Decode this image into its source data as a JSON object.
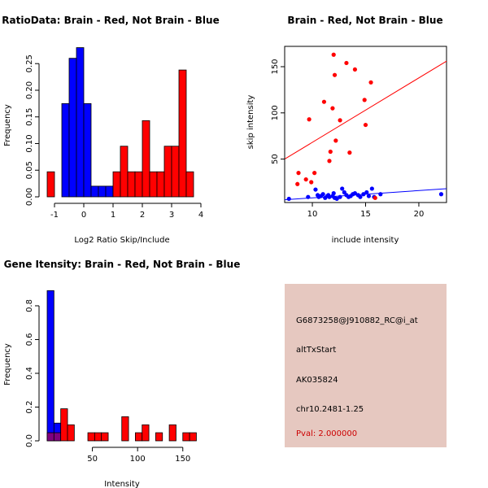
{
  "chart_data": [
    {
      "type": "bar",
      "title": "RatioData: Brain - Red, Not Brain - Blue",
      "xlabel": "Log2 Ratio Skip/Include",
      "ylabel": "Frequency",
      "xlim": [
        -1.25,
        4.0
      ],
      "ylim": [
        0,
        0.29
      ],
      "xticks": [
        "-1",
        "0",
        "1",
        "2",
        "3",
        "4"
      ],
      "xtick_values": [
        -1,
        0,
        1,
        2,
        3,
        4
      ],
      "yticks": [
        "0.00",
        "0.05",
        "0.10",
        "0.15",
        "0.20",
        "0.25"
      ],
      "ytick_values": [
        0,
        0.05,
        0.1,
        0.15,
        0.2,
        0.25
      ],
      "bin_width": 0.25,
      "series": [
        {
          "name": "Not Brain",
          "color": "#0000ff",
          "bins": [
            [
              -1.0,
              0.0
            ],
            [
              -0.75,
              0.175
            ],
            [
              -0.5,
              0.26
            ],
            [
              -0.25,
              0.28
            ],
            [
              0.0,
              0.175
            ],
            [
              0.25,
              0.02
            ],
            [
              0.5,
              0.02
            ],
            [
              0.75,
              0.02
            ]
          ]
        },
        {
          "name": "Brain",
          "color": "#ff0000",
          "bins": [
            [
              -1.25,
              0.047
            ],
            [
              1.0,
              0.047
            ],
            [
              1.25,
              0.095
            ],
            [
              1.5,
              0.047
            ],
            [
              1.75,
              0.047
            ],
            [
              2.0,
              0.143
            ],
            [
              2.25,
              0.047
            ],
            [
              2.5,
              0.047
            ],
            [
              2.75,
              0.095
            ],
            [
              3.0,
              0.095
            ],
            [
              3.25,
              0.238
            ],
            [
              3.5,
              0.047
            ]
          ]
        }
      ]
    },
    {
      "type": "scatter",
      "title": "Brain - Red, Not Brain - Blue",
      "xlabel": "include intensity",
      "ylabel": "skip intensity",
      "xlim": [
        7.4,
        22.6
      ],
      "ylim": [
        3,
        172
      ],
      "xticks": [
        "10",
        "15",
        "20"
      ],
      "xtick_values": [
        10,
        15,
        20
      ],
      "yticks": [
        "50",
        "100",
        "150"
      ],
      "ytick_values": [
        50,
        100,
        150
      ],
      "series": [
        {
          "name": "Brain",
          "color": "#ff0000",
          "fit_line": [
            [
              7.4,
              50
            ],
            [
              22.6,
              156
            ]
          ],
          "points": [
            [
              8.6,
              23
            ],
            [
              8.7,
              35
            ],
            [
              9.4,
              28
            ],
            [
              9.7,
              93
            ],
            [
              9.9,
              25
            ],
            [
              10.2,
              35
            ],
            [
              11.1,
              112
            ],
            [
              11.6,
              48
            ],
            [
              11.7,
              58
            ],
            [
              11.9,
              105
            ],
            [
              12.0,
              163
            ],
            [
              12.1,
              141
            ],
            [
              12.2,
              70
            ],
            [
              12.6,
              92
            ],
            [
              13.2,
              154
            ],
            [
              13.5,
              57
            ],
            [
              14.0,
              147
            ],
            [
              14.9,
              114
            ],
            [
              15.0,
              87
            ],
            [
              15.5,
              133
            ],
            [
              15.9,
              8
            ]
          ]
        },
        {
          "name": "Not Brain",
          "color": "#0000ff",
          "fit_line": [
            [
              7.4,
              6
            ],
            [
              22.6,
              18
            ]
          ],
          "points": [
            [
              7.8,
              7
            ],
            [
              9.6,
              9
            ],
            [
              10.3,
              17
            ],
            [
              10.5,
              11
            ],
            [
              10.6,
              9
            ],
            [
              10.8,
              10
            ],
            [
              11.0,
              12
            ],
            [
              11.2,
              8
            ],
            [
              11.4,
              10
            ],
            [
              11.5,
              11
            ],
            [
              11.6,
              9
            ],
            [
              11.9,
              10
            ],
            [
              12.0,
              13
            ],
            [
              12.1,
              8
            ],
            [
              12.3,
              7
            ],
            [
              12.6,
              9
            ],
            [
              12.8,
              18
            ],
            [
              13.0,
              14
            ],
            [
              13.2,
              11
            ],
            [
              13.4,
              9
            ],
            [
              13.6,
              10
            ],
            [
              13.8,
              12
            ],
            [
              14.0,
              13
            ],
            [
              14.3,
              11
            ],
            [
              14.5,
              9
            ],
            [
              14.8,
              12
            ],
            [
              15.1,
              14
            ],
            [
              15.3,
              10
            ],
            [
              15.6,
              18
            ],
            [
              15.8,
              9
            ],
            [
              16.4,
              12
            ],
            [
              22.1,
              12
            ]
          ]
        }
      ]
    },
    {
      "type": "bar",
      "title": "Gene Itensity: Brain - Red, Not Brain - Blue",
      "xlabel": "Intensity",
      "ylabel": "Frequency",
      "xlim": [
        0,
        170
      ],
      "ylim": [
        0,
        0.93
      ],
      "xticks": [
        "50",
        "100",
        "150"
      ],
      "xtick_values": [
        50,
        100,
        150
      ],
      "yticks": [
        "0.0",
        "0.2",
        "0.4",
        "0.6",
        "0.8"
      ],
      "ytick_values": [
        0,
        0.2,
        0.4,
        0.6,
        0.8
      ],
      "bin_width": 7.5,
      "series": [
        {
          "name": "Not Brain",
          "color": "#0000ff",
          "bins": [
            [
              0,
              0.89
            ],
            [
              7.5,
              0.105
            ]
          ]
        },
        {
          "name": "Brain",
          "color": "#ff0000",
          "overlap_color": "#7f007f",
          "bins": [
            [
              0,
              0.048
            ],
            [
              7.5,
              0.048
            ],
            [
              15,
              0.19
            ],
            [
              22.5,
              0.095
            ],
            [
              45,
              0.048
            ],
            [
              52.5,
              0.048
            ],
            [
              60,
              0.048
            ],
            [
              82.5,
              0.143
            ],
            [
              97.5,
              0.048
            ],
            [
              105,
              0.095
            ],
            [
              120,
              0.048
            ],
            [
              135,
              0.095
            ],
            [
              150,
              0.048
            ],
            [
              157.5,
              0.048
            ]
          ]
        }
      ]
    }
  ],
  "info": {
    "probe_id": "G6873258@J910882_RC@i_at",
    "event_type": "altTxStart",
    "accession": "AK035824",
    "location": "chr10.2481-1.25",
    "pval": "Pval: 2.000000",
    "background_color": "#e6c8c0",
    "pval_color": "#cc0000"
  }
}
